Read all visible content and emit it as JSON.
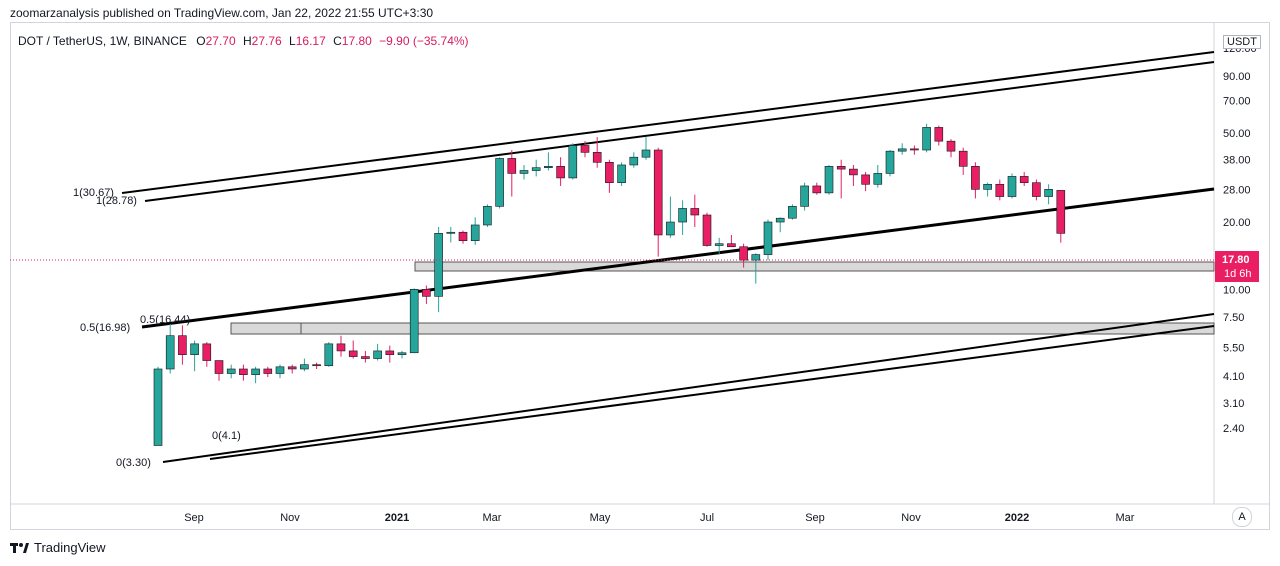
{
  "header": {
    "published": "zoomarzanalysis published on TradingView.com, Jan 22, 2022 21:55 UTC+3:30"
  },
  "legend": {
    "symbol": "DOT / TetherUS, 1W, BINANCE",
    "o_label": "O",
    "o": "27.70",
    "h_label": "H",
    "h": "27.76",
    "l_label": "L",
    "l": "16.17",
    "c_label": "C",
    "c": "17.80",
    "change": "−9.90 (−35.74%)"
  },
  "currency": "USDT",
  "price_badge": {
    "price": "17.80",
    "countdown": "1d 6h"
  },
  "auto_button": "A",
  "footer": {
    "brand": "TradingView"
  },
  "colors": {
    "up": "#26a69a",
    "down": "#e91e63",
    "line": "#000000",
    "zone": "#d9d9d9"
  },
  "chart_data": {
    "type": "candlestick",
    "scale": "log",
    "y_ticks": [
      "120.00",
      "90.00",
      "70.00",
      "50.00",
      "38.00",
      "28.00",
      "20.00",
      "14.00",
      "10.00",
      "7.50",
      "5.50",
      "4.10",
      "3.10",
      "2.40"
    ],
    "x_ticks": [
      "Sep",
      "Nov",
      "2021",
      "Mar",
      "May",
      "Jul",
      "Sep",
      "Nov",
      "2022",
      "Mar"
    ],
    "annotations": [
      "1(30.67)",
      "1(28.78)",
      "0.5(16.44)",
      "0.5(16.98)",
      "0(4.1)",
      "0(3.30)"
    ],
    "candles": [
      {
        "o": 2.0,
        "h": 4.5,
        "l": 2.0,
        "c": 4.4
      },
      {
        "o": 4.4,
        "h": 7.0,
        "l": 4.2,
        "c": 6.2
      },
      {
        "o": 6.2,
        "h": 6.9,
        "l": 4.6,
        "c": 5.1
      },
      {
        "o": 5.1,
        "h": 5.9,
        "l": 4.3,
        "c": 5.7
      },
      {
        "o": 5.7,
        "h": 5.8,
        "l": 4.5,
        "c": 4.8
      },
      {
        "o": 4.8,
        "h": 4.8,
        "l": 3.9,
        "c": 4.2
      },
      {
        "o": 4.2,
        "h": 4.6,
        "l": 4.0,
        "c": 4.4
      },
      {
        "o": 4.4,
        "h": 4.6,
        "l": 3.9,
        "c": 4.15
      },
      {
        "o": 4.15,
        "h": 4.5,
        "l": 3.8,
        "c": 4.4
      },
      {
        "o": 4.4,
        "h": 4.5,
        "l": 4.05,
        "c": 4.2
      },
      {
        "o": 4.2,
        "h": 4.6,
        "l": 4.0,
        "c": 4.5
      },
      {
        "o": 4.5,
        "h": 4.6,
        "l": 4.2,
        "c": 4.4
      },
      {
        "o": 4.4,
        "h": 4.9,
        "l": 4.3,
        "c": 4.6
      },
      {
        "o": 4.6,
        "h": 4.7,
        "l": 4.4,
        "c": 4.55
      },
      {
        "o": 4.55,
        "h": 5.8,
        "l": 4.5,
        "c": 5.7
      },
      {
        "o": 5.7,
        "h": 6.2,
        "l": 5.0,
        "c": 5.3
      },
      {
        "o": 5.3,
        "h": 5.9,
        "l": 4.9,
        "c": 5.0
      },
      {
        "o": 5.0,
        "h": 5.3,
        "l": 4.7,
        "c": 4.9
      },
      {
        "o": 4.9,
        "h": 5.7,
        "l": 4.8,
        "c": 5.3
      },
      {
        "o": 5.3,
        "h": 5.6,
        "l": 4.7,
        "c": 5.1
      },
      {
        "o": 5.1,
        "h": 5.3,
        "l": 4.9,
        "c": 5.2
      },
      {
        "o": 5.2,
        "h": 10.1,
        "l": 5.2,
        "c": 10.0
      },
      {
        "o": 10.0,
        "h": 10.4,
        "l": 8.6,
        "c": 9.3
      },
      {
        "o": 9.3,
        "h": 19.0,
        "l": 7.9,
        "c": 17.8
      },
      {
        "o": 17.8,
        "h": 19.0,
        "l": 16.2,
        "c": 18.0
      },
      {
        "o": 18.0,
        "h": 18.3,
        "l": 16.0,
        "c": 16.5
      },
      {
        "o": 16.5,
        "h": 21.0,
        "l": 15.8,
        "c": 19.4
      },
      {
        "o": 19.4,
        "h": 24.0,
        "l": 19.0,
        "c": 23.5
      },
      {
        "o": 23.5,
        "h": 39.0,
        "l": 23.0,
        "c": 38.5
      },
      {
        "o": 38.5,
        "h": 42.0,
        "l": 26.0,
        "c": 33.0
      },
      {
        "o": 33.0,
        "h": 36.0,
        "l": 31.0,
        "c": 34.0
      },
      {
        "o": 34.0,
        "h": 38.0,
        "l": 32.0,
        "c": 35.0
      },
      {
        "o": 35.0,
        "h": 41.0,
        "l": 34.0,
        "c": 35.5
      },
      {
        "o": 35.5,
        "h": 39.0,
        "l": 29.0,
        "c": 31.5
      },
      {
        "o": 31.5,
        "h": 45.0,
        "l": 31.0,
        "c": 44.0
      },
      {
        "o": 44.0,
        "h": 46.0,
        "l": 39.0,
        "c": 41.0
      },
      {
        "o": 41.0,
        "h": 48.0,
        "l": 35.0,
        "c": 37.0
      },
      {
        "o": 37.0,
        "h": 38.0,
        "l": 27.0,
        "c": 30.0
      },
      {
        "o": 30.0,
        "h": 37.0,
        "l": 29.0,
        "c": 36.0
      },
      {
        "o": 36.0,
        "h": 41.0,
        "l": 35.0,
        "c": 39.0
      },
      {
        "o": 39.0,
        "h": 48.0,
        "l": 38.0,
        "c": 42.0
      },
      {
        "o": 42.0,
        "h": 43.0,
        "l": 14.0,
        "c": 17.5
      },
      {
        "o": 17.5,
        "h": 26.0,
        "l": 17.0,
        "c": 20.0
      },
      {
        "o": 20.0,
        "h": 25.0,
        "l": 17.5,
        "c": 23.0
      },
      {
        "o": 23.0,
        "h": 26.5,
        "l": 19.0,
        "c": 21.5
      },
      {
        "o": 21.5,
        "h": 22.0,
        "l": 15.5,
        "c": 15.7
      },
      {
        "o": 15.7,
        "h": 17.0,
        "l": 14.3,
        "c": 16.0
      },
      {
        "o": 16.0,
        "h": 17.5,
        "l": 15.5,
        "c": 15.5
      },
      {
        "o": 15.5,
        "h": 16.0,
        "l": 12.5,
        "c": 13.5
      },
      {
        "o": 13.5,
        "h": 14.5,
        "l": 10.6,
        "c": 14.3
      },
      {
        "o": 14.3,
        "h": 20.5,
        "l": 13.5,
        "c": 20.0
      },
      {
        "o": 20.0,
        "h": 21.0,
        "l": 18.0,
        "c": 20.8
      },
      {
        "o": 20.8,
        "h": 24.0,
        "l": 20.5,
        "c": 23.5
      },
      {
        "o": 23.5,
        "h": 30.0,
        "l": 22.5,
        "c": 29.0
      },
      {
        "o": 29.0,
        "h": 30.0,
        "l": 26.5,
        "c": 27.0
      },
      {
        "o": 27.0,
        "h": 36.0,
        "l": 26.5,
        "c": 35.5
      },
      {
        "o": 35.5,
        "h": 38.0,
        "l": 25.5,
        "c": 34.5
      },
      {
        "o": 34.5,
        "h": 36.0,
        "l": 29.0,
        "c": 32.5
      },
      {
        "o": 32.5,
        "h": 33.5,
        "l": 27.5,
        "c": 29.5
      },
      {
        "o": 29.5,
        "h": 36.0,
        "l": 28.5,
        "c": 33.0
      },
      {
        "o": 33.0,
        "h": 42.0,
        "l": 32.0,
        "c": 41.5
      },
      {
        "o": 41.5,
        "h": 45.0,
        "l": 40.0,
        "c": 42.5
      },
      {
        "o": 42.5,
        "h": 44.0,
        "l": 40.0,
        "c": 42.0
      },
      {
        "o": 42.0,
        "h": 55.0,
        "l": 41.0,
        "c": 53.0
      },
      {
        "o": 53.0,
        "h": 54.0,
        "l": 44.0,
        "c": 46.0
      },
      {
        "o": 46.0,
        "h": 47.0,
        "l": 39.0,
        "c": 41.5
      },
      {
        "o": 41.5,
        "h": 43.0,
        "l": 32.5,
        "c": 35.5
      },
      {
        "o": 35.5,
        "h": 37.0,
        "l": 25.5,
        "c": 28.0
      },
      {
        "o": 28.0,
        "h": 30.0,
        "l": 26.0,
        "c": 29.5
      },
      {
        "o": 29.5,
        "h": 31.0,
        "l": 25.0,
        "c": 26.0
      },
      {
        "o": 26.0,
        "h": 33.0,
        "l": 25.5,
        "c": 32.0
      },
      {
        "o": 32.0,
        "h": 33.5,
        "l": 29.0,
        "c": 30.0
      },
      {
        "o": 30.0,
        "h": 31.0,
        "l": 25.0,
        "c": 26.0
      },
      {
        "o": 26.0,
        "h": 29.5,
        "l": 24.0,
        "c": 28.0
      },
      {
        "o": 27.7,
        "h": 27.76,
        "l": 16.17,
        "c": 17.8
      }
    ]
  }
}
